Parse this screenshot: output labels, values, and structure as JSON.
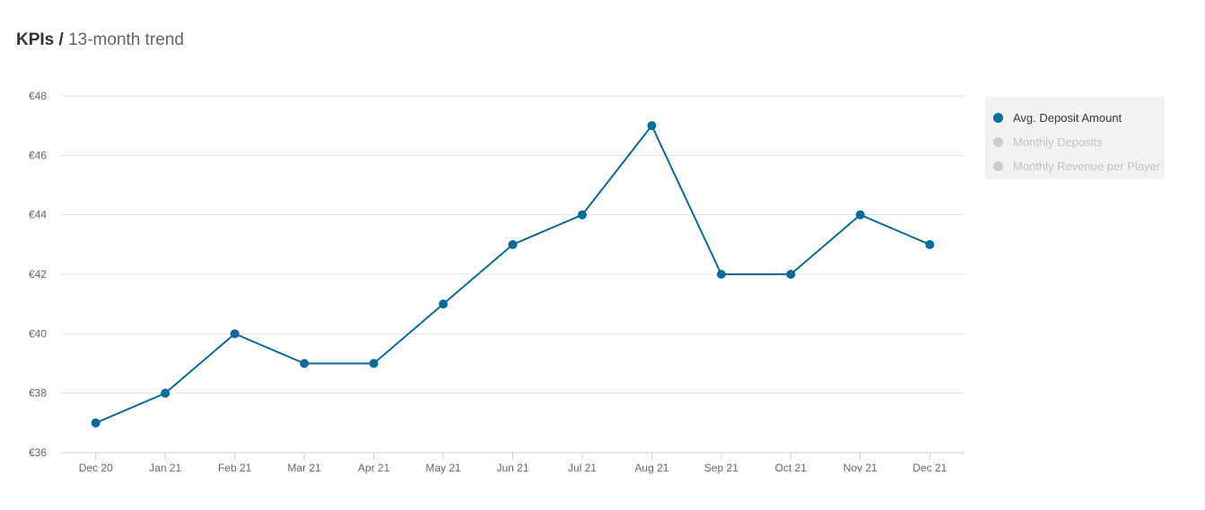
{
  "header": {
    "title_bold": "KPIs",
    "separator": "/",
    "subtitle": "13-month trend"
  },
  "legend": {
    "items": [
      {
        "label": "Avg. Deposit Amount",
        "active": true,
        "color": "#0a6a9a"
      },
      {
        "label": "Monthly Deposits",
        "active": false,
        "color": "#cccccc"
      },
      {
        "label": "Monthly Revenue per Player",
        "active": false,
        "color": "#cccccc"
      }
    ]
  },
  "chart_data": {
    "type": "line",
    "categories": [
      "Dec 20",
      "Jan 21",
      "Feb 21",
      "Mar 21",
      "Apr 21",
      "May 21",
      "Jun 21",
      "Jul 21",
      "Aug 21",
      "Sep 21",
      "Oct 21",
      "Nov 21",
      "Dec 21"
    ],
    "series": [
      {
        "name": "Avg. Deposit Amount",
        "values": [
          37,
          38,
          40,
          39,
          39,
          41,
          43,
          44,
          47,
          42,
          42,
          44,
          43
        ],
        "color": "#0a6a9a"
      }
    ],
    "y_ticks": [
      36,
      38,
      40,
      42,
      44,
      46,
      48
    ],
    "y_tick_prefix": "€",
    "ylim": [
      36,
      48
    ],
    "grid": true,
    "legend_position": "right"
  }
}
